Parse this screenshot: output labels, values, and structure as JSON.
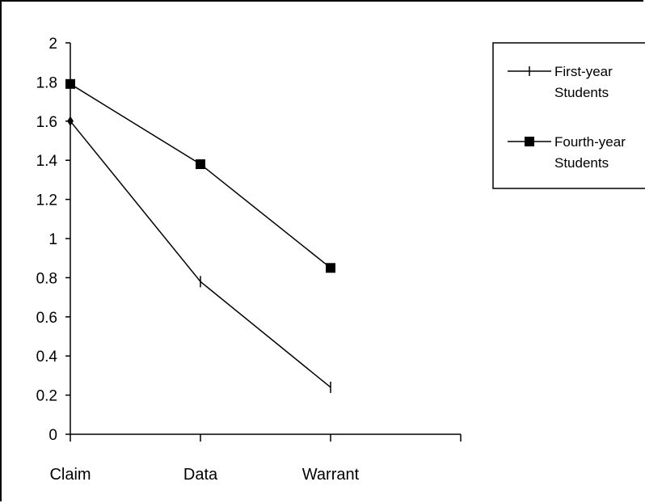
{
  "chart_data": {
    "type": "line",
    "categories": [
      "Claim",
      "Data",
      "Warrant"
    ],
    "series": [
      {
        "name": "First-year Students",
        "name_lines": [
          "First-year",
          "Students"
        ],
        "marker": "tick",
        "values": [
          1.6,
          0.78,
          0.24
        ]
      },
      {
        "name": "Fourth-year Students",
        "name_lines": [
          "Fourth-year",
          "Students"
        ],
        "marker": "square",
        "values": [
          1.79,
          1.38,
          0.85
        ]
      }
    ],
    "ylim": [
      0,
      2
    ],
    "yticks": [
      0,
      0.2,
      0.4,
      0.6,
      0.8,
      1,
      1.2,
      1.4,
      1.6,
      1.8,
      2
    ],
    "ytick_labels": [
      "0",
      "0.2",
      "0.4",
      "0.6",
      "0.8",
      "1",
      "1.2",
      "1.4",
      "1.6",
      "1.8",
      "2"
    ],
    "xlabel": "",
    "ylabel": "",
    "title": "",
    "grid": false,
    "legend_position": "top-right",
    "colors": {
      "line": "#000000",
      "background": "#ffffff"
    }
  }
}
